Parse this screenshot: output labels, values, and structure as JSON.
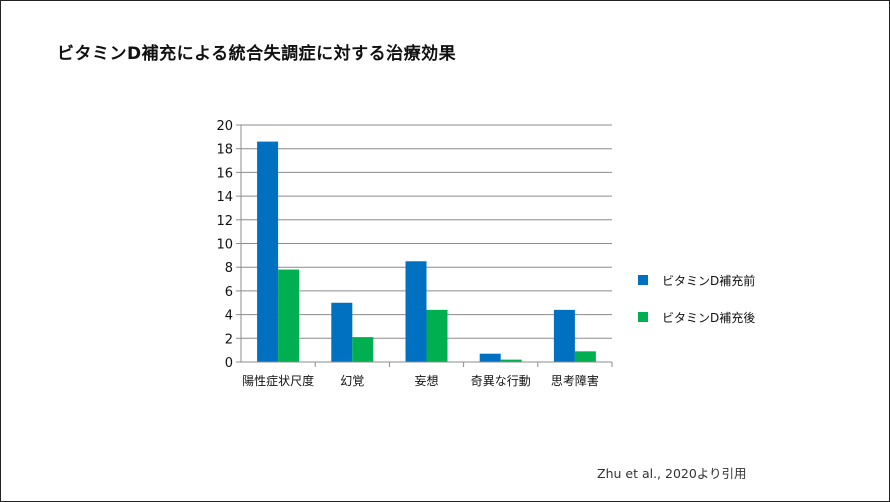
{
  "title": "ビタミンD補充による統合失調症に対する治療効果",
  "citation": "Zhu et al., 2020より引用",
  "chart_data": {
    "type": "bar",
    "categories": [
      "陽性症状尺度",
      "幻覚",
      "妄想",
      "奇異な行動",
      "思考障害"
    ],
    "series": [
      {
        "name": "ビタミンD補充前",
        "color": "#0070c0",
        "values": [
          18.6,
          5.0,
          8.5,
          0.7,
          4.4
        ]
      },
      {
        "name": "ビタミンD補充後",
        "color": "#00b050",
        "values": [
          7.8,
          2.1,
          4.4,
          0.2,
          0.9
        ]
      }
    ],
    "ylim": [
      0,
      20
    ],
    "yticks": [
      0,
      2,
      4,
      6,
      8,
      10,
      12,
      14,
      16,
      18,
      20
    ],
    "grid": true,
    "legend": "right"
  }
}
